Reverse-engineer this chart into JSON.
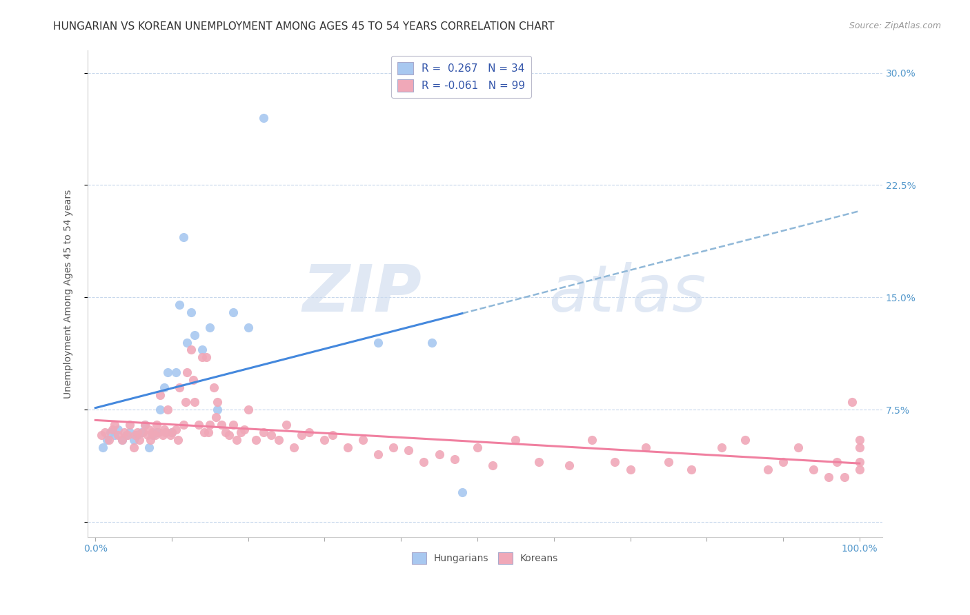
{
  "title": "HUNGARIAN VS KOREAN UNEMPLOYMENT AMONG AGES 45 TO 54 YEARS CORRELATION CHART",
  "source": "Source: ZipAtlas.com",
  "ylabel": "Unemployment Among Ages 45 to 54 years",
  "xlim": [
    0.0,
    1.0
  ],
  "ylim": [
    0.0,
    0.32
  ],
  "x_ticks": [
    0.0,
    0.1,
    0.2,
    0.3,
    0.4,
    0.5,
    0.6,
    0.7,
    0.8,
    0.9,
    1.0
  ],
  "x_tick_labels": [
    "0.0%",
    "",
    "",
    "",
    "",
    "",
    "",
    "",
    "",
    "",
    "100.0%"
  ],
  "y_ticks": [
    0.0,
    0.075,
    0.15,
    0.225,
    0.3
  ],
  "y_tick_labels": [
    "",
    "7.5%",
    "15.0%",
    "22.5%",
    "30.0%"
  ],
  "hungarian_color": "#a8c8f0",
  "korean_color": "#f0a8b8",
  "hungarian_line_color": "#4488dd",
  "korean_line_color": "#f080a0",
  "trendline_dash_color": "#90b8d8",
  "watermark_zip": "ZIP",
  "watermark_atlas": "atlas",
  "background_color": "#ffffff",
  "grid_color": "#c8d8ec",
  "title_fontsize": 11,
  "axis_label_fontsize": 10,
  "tick_fontsize": 10,
  "source_fontsize": 9,
  "hungarian_x": [
    0.01,
    0.015,
    0.02,
    0.025,
    0.03,
    0.035,
    0.04,
    0.045,
    0.05,
    0.055,
    0.06,
    0.065,
    0.07,
    0.075,
    0.08,
    0.085,
    0.09,
    0.095,
    0.1,
    0.105,
    0.11,
    0.115,
    0.12,
    0.125,
    0.13,
    0.14,
    0.15,
    0.16,
    0.18,
    0.2,
    0.22,
    0.37,
    0.44,
    0.48
  ],
  "hungarian_y": [
    0.05,
    0.055,
    0.06,
    0.058,
    0.062,
    0.055,
    0.058,
    0.06,
    0.055,
    0.058,
    0.06,
    0.065,
    0.05,
    0.058,
    0.06,
    0.075,
    0.09,
    0.1,
    0.06,
    0.1,
    0.145,
    0.19,
    0.12,
    0.14,
    0.125,
    0.115,
    0.13,
    0.075,
    0.14,
    0.13,
    0.27,
    0.12,
    0.12,
    0.02
  ],
  "korean_x": [
    0.008,
    0.012,
    0.018,
    0.022,
    0.025,
    0.03,
    0.035,
    0.038,
    0.042,
    0.045,
    0.05,
    0.052,
    0.055,
    0.058,
    0.062,
    0.065,
    0.068,
    0.07,
    0.072,
    0.075,
    0.078,
    0.08,
    0.083,
    0.085,
    0.088,
    0.09,
    0.092,
    0.095,
    0.098,
    0.1,
    0.105,
    0.108,
    0.11,
    0.115,
    0.118,
    0.12,
    0.125,
    0.128,
    0.13,
    0.135,
    0.14,
    0.142,
    0.145,
    0.148,
    0.15,
    0.155,
    0.158,
    0.16,
    0.165,
    0.17,
    0.175,
    0.18,
    0.185,
    0.19,
    0.195,
    0.2,
    0.21,
    0.22,
    0.23,
    0.24,
    0.25,
    0.26,
    0.27,
    0.28,
    0.3,
    0.31,
    0.33,
    0.35,
    0.37,
    0.39,
    0.41,
    0.43,
    0.45,
    0.47,
    0.5,
    0.52,
    0.55,
    0.58,
    0.62,
    0.65,
    0.68,
    0.7,
    0.72,
    0.75,
    0.78,
    0.82,
    0.85,
    0.88,
    0.9,
    0.92,
    0.94,
    0.96,
    0.97,
    0.98,
    0.99,
    1.0,
    1.0,
    1.0,
    1.0
  ],
  "korean_y": [
    0.058,
    0.06,
    0.055,
    0.062,
    0.065,
    0.058,
    0.055,
    0.06,
    0.058,
    0.065,
    0.05,
    0.058,
    0.06,
    0.055,
    0.06,
    0.065,
    0.058,
    0.062,
    0.055,
    0.06,
    0.058,
    0.065,
    0.06,
    0.085,
    0.058,
    0.062,
    0.06,
    0.075,
    0.058,
    0.06,
    0.062,
    0.055,
    0.09,
    0.065,
    0.08,
    0.1,
    0.115,
    0.095,
    0.08,
    0.065,
    0.11,
    0.06,
    0.11,
    0.06,
    0.065,
    0.09,
    0.07,
    0.08,
    0.065,
    0.06,
    0.058,
    0.065,
    0.055,
    0.06,
    0.062,
    0.075,
    0.055,
    0.06,
    0.058,
    0.055,
    0.065,
    0.05,
    0.058,
    0.06,
    0.055,
    0.058,
    0.05,
    0.055,
    0.045,
    0.05,
    0.048,
    0.04,
    0.045,
    0.042,
    0.05,
    0.038,
    0.055,
    0.04,
    0.038,
    0.055,
    0.04,
    0.035,
    0.05,
    0.04,
    0.035,
    0.05,
    0.055,
    0.035,
    0.04,
    0.05,
    0.035,
    0.03,
    0.04,
    0.03,
    0.08,
    0.035,
    0.04,
    0.05,
    0.055
  ],
  "legend_R1": "R =  0.267   N = 34",
  "legend_R2": "R = -0.061   N = 99"
}
